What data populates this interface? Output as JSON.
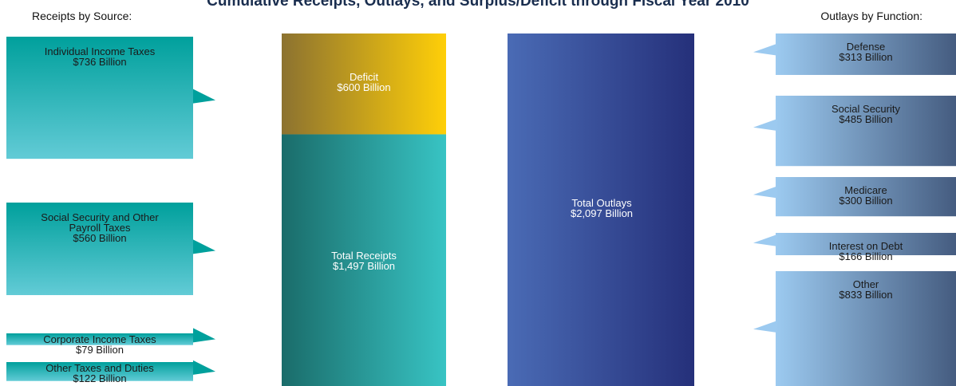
{
  "title": "Cumulative Receipts, Outlays, and Surplus/Deficit through Fiscal Year 2010",
  "left_heading": "Receipts by Source:",
  "right_heading": "Outlays by Function:",
  "chart_data": {
    "type": "bar",
    "units": "Billion",
    "receipts_by_source": [
      {
        "lines": [
          "Individual Income Taxes",
          "$736 Billion"
        ],
        "value": 736
      },
      {
        "lines": [
          "Social Security and Other",
          "Payroll Taxes",
          "$560 Billion"
        ],
        "value": 560
      },
      {
        "lines": [
          "Corporate Income Taxes",
          "$79 Billion"
        ],
        "value": 79
      },
      {
        "lines": [
          "Other Taxes and Duties",
          "$122 Billion"
        ],
        "value": 122
      }
    ],
    "center": {
      "deficit": {
        "lines": [
          "Deficit",
          "$600 Billion"
        ],
        "value": 600
      },
      "total_receipts": {
        "lines": [
          "Total Receipts",
          "$1,497 Billion"
        ],
        "value": 1497
      },
      "total_outlays": {
        "lines": [
          "Total Outlays",
          "$2,097 Billion"
        ],
        "value": 2097
      }
    },
    "outlays_by_function": [
      {
        "lines": [
          "Defense",
          "$313 Billion"
        ],
        "value": 313
      },
      {
        "lines": [
          "Social Security",
          "$485 Billion"
        ],
        "value": 485
      },
      {
        "lines": [
          "Medicare",
          "$300 Billion"
        ],
        "value": 300
      },
      {
        "lines": [
          "Interest on Debt",
          "$166 Billion"
        ],
        "value": 166
      },
      {
        "lines": [
          "Other",
          "$833 Billion"
        ],
        "value": 833
      }
    ],
    "colors": {
      "receipt_top": "#00a09c",
      "receipt_bottom": "#62cbd6",
      "deficit_left": "#8c7230",
      "deficit_right": "#ffcf08",
      "total_receipts_left": "#1a6c6a",
      "total_receipts_right": "#38c4c4",
      "outlays_left": "#4a6bb5",
      "outlays_right": "#25307a",
      "outlay_box_left": "#9ccaf0",
      "outlay_box_right": "#455c80"
    }
  }
}
